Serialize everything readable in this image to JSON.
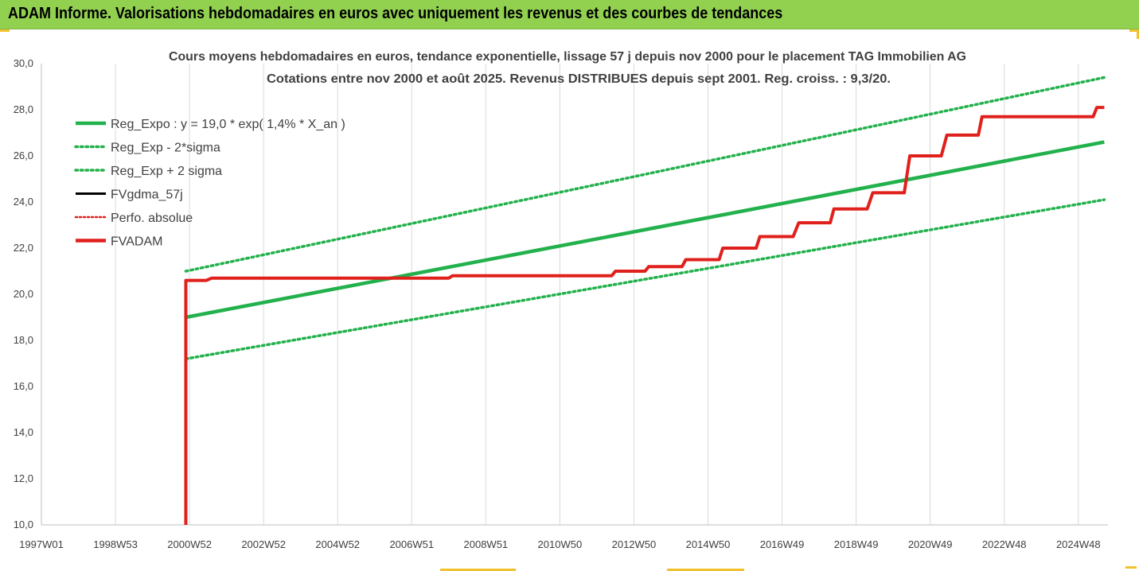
{
  "header": {
    "title": "ADAM Informe. Valorisations hebdomadaires en euros avec uniquement les revenus et des courbes de tendances"
  },
  "colors": {
    "header_bg": "#92d050",
    "reg_expo": "#22b14c",
    "reg_band": "#22b14c",
    "fvgdma": "#000000",
    "perfo": "#e0201c",
    "fvadam": "#e0201c"
  },
  "chart_data": {
    "type": "line",
    "title_lines": [
      "Cours moyens hebdomadaires en euros, tendance exponentielle, lissage 57 j depuis nov 2000 pour le placement TAG Immobilien AG",
      "Cotations entre nov 2000 et août 2025.  Revenus DISTRIBUES depuis sept 2001. Reg. croiss. : 9,3/20."
    ],
    "x_tick_labels": [
      "1997W01",
      "1998W53",
      "2000W52",
      "2002W52",
      "2004W52",
      "2006W51",
      "2008W51",
      "2010W50",
      "2012W50",
      "2014W50",
      "2016W49",
      "2018W49",
      "2020W49",
      "2022W48",
      "2024W48"
    ],
    "x_tick_years": [
      1997.0,
      1999.0,
      2001.0,
      2003.0,
      2005.0,
      2007.0,
      2009.0,
      2011.0,
      2013.0,
      2015.0,
      2017.0,
      2019.0,
      2021.0,
      2023.0,
      2025.0
    ],
    "xlim": [
      1997.0,
      2025.8
    ],
    "y_ticks": [
      "10,0",
      "12,0",
      "14,0",
      "16,0",
      "18,0",
      "20,0",
      "22,0",
      "24,0",
      "26,0",
      "28,0",
      "30,0"
    ],
    "ylim": [
      10,
      30
    ],
    "grid": "vertical",
    "legend_position": "top-left",
    "legend": [
      {
        "label": "Reg_Expo : y = 19,0 * exp( 1,4% *  X_an )",
        "style": "solid-thick",
        "color": "#22b14c"
      },
      {
        "label": "Reg_Exp - 2*sigma",
        "style": "dotted",
        "color": "#22b14c"
      },
      {
        "label": "Reg_Exp + 2 sigma",
        "style": "dotted",
        "color": "#22b14c"
      },
      {
        "label": "FVgdma_57j",
        "style": "solid",
        "color": "#000000"
      },
      {
        "label": "Perfo. absolue",
        "style": "dotted",
        "color": "#e0201c"
      },
      {
        "label": "FVADAM",
        "style": "solid-thick",
        "color": "#e0201c"
      }
    ],
    "series": [
      {
        "name": "Reg_Expo : y = 19,0 * exp( 1,4% *  X_an )",
        "x": [
          2000.9,
          2025.7
        ],
        "y": [
          19.0,
          26.6
        ]
      },
      {
        "name": "Reg_Exp - 2*sigma",
        "x": [
          2000.9,
          2025.7
        ],
        "y": [
          17.2,
          24.1
        ]
      },
      {
        "name": "Reg_Exp + 2 sigma",
        "x": [
          2000.9,
          2025.7
        ],
        "y": [
          21.0,
          29.4
        ]
      },
      {
        "name": "FVADAM",
        "x": [
          2000.9,
          2000.9,
          2001.1,
          2001.45,
          2001.6,
          2008.0,
          2008.1,
          2012.4,
          2012.5,
          2013.3,
          2013.4,
          2014.3,
          2014.4,
          2015.3,
          2015.4,
          2016.3,
          2016.4,
          2017.3,
          2017.45,
          2018.3,
          2018.4,
          2019.3,
          2019.45,
          2020.3,
          2020.45,
          2021.3,
          2021.45,
          2022.3,
          2022.4,
          2025.4,
          2025.5,
          2025.7
        ],
        "y": [
          10.0,
          20.6,
          20.6,
          20.6,
          20.7,
          20.7,
          20.8,
          20.8,
          21.0,
          21.0,
          21.2,
          21.2,
          21.5,
          21.5,
          22.0,
          22.0,
          22.5,
          22.5,
          23.1,
          23.1,
          23.7,
          23.7,
          24.4,
          24.4,
          26.0,
          26.0,
          26.9,
          26.9,
          27.7,
          27.7,
          28.1,
          28.1
        ]
      }
    ]
  }
}
